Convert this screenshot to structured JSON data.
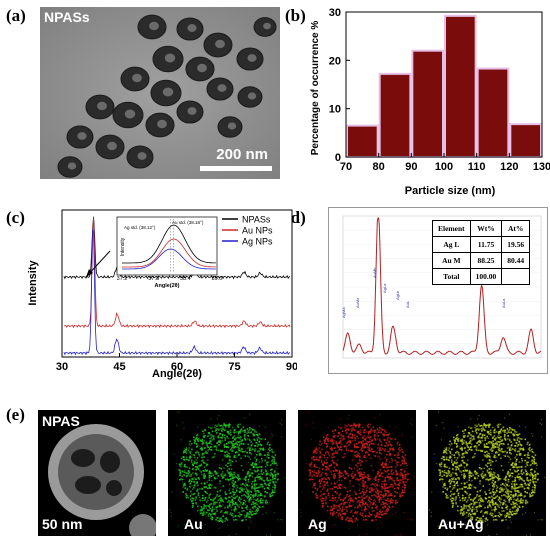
{
  "labels": {
    "a": "(a)",
    "b": "(b)",
    "c": "(c)",
    "d": "(d)",
    "e": "(e)"
  },
  "tem": {
    "sample": "NPASs",
    "scale_bar": "200 nm"
  },
  "chart_data": [
    {
      "type": "bar",
      "panel": "b",
      "categories": [
        "75",
        "85",
        "95",
        "105",
        "115",
        "125"
      ],
      "x": [
        75,
        85,
        95,
        105,
        115,
        125
      ],
      "values": [
        6.5,
        17.2,
        22.0,
        29.2,
        18.3,
        6.8
      ],
      "xlabel": "Particle size (nm)",
      "ylabel": "Percentage of occurrence %",
      "xlim": [
        70,
        130
      ],
      "ylim": [
        0,
        30
      ],
      "xticks": [
        "70",
        "80",
        "90",
        "100",
        "110",
        "120",
        "130"
      ],
      "yticks": [
        "0",
        "10",
        "20",
        "30"
      ],
      "bar_color": "#7a0c0c",
      "edge_color": "#e6c0e6"
    },
    {
      "type": "line",
      "panel": "c",
      "xlabel": "Angle(2θ)",
      "ylabel": "Intensity",
      "xticks": [
        "30",
        "45",
        "60",
        "75",
        "90"
      ],
      "xlim": [
        30,
        90
      ],
      "series": [
        {
          "name": "NPASs",
          "color": "#000000",
          "peaks": [
            38.2,
            44.4,
            64.6,
            77.5,
            81.7
          ]
        },
        {
          "name": "Au NPs",
          "color": "#cc2a2a",
          "peaks": [
            38.2,
            44.4,
            64.6,
            77.5,
            81.7
          ]
        },
        {
          "name": "Ag NPs",
          "color": "#2020cc",
          "peaks": [
            38.1,
            44.3,
            64.5,
            77.4,
            81.6
          ]
        }
      ],
      "inset": {
        "xlabel": "Angle(2θ)",
        "ylabel": "Intensity",
        "xticks": [
          "37.2",
          "37.8",
          "38.4",
          "39.0"
        ],
        "annot_ag": "Ag std. (38.12°)",
        "annot_au": "Au std. (38.18°)"
      }
    }
  ],
  "edx": {
    "header": [
      "Element",
      "Wt%",
      "At%"
    ],
    "rows": [
      [
        "Ag L",
        "11.75",
        "19.56"
      ],
      [
        "Au M",
        "88.25",
        "80.44"
      ],
      [
        "Total",
        "100.00",
        ""
      ]
    ],
    "peaks": [
      "AgMA",
      "AuMz",
      "AuMb",
      "AgLa",
      "AgLb",
      "AuL",
      "AuLa"
    ]
  },
  "maps": [
    {
      "label": "NPAS",
      "sub": "50 nm",
      "tone": "gray"
    },
    {
      "label": "Au",
      "tone": "green"
    },
    {
      "label": "Ag",
      "tone": "red"
    },
    {
      "label": "Au+Ag",
      "tone": "yellow"
    }
  ]
}
